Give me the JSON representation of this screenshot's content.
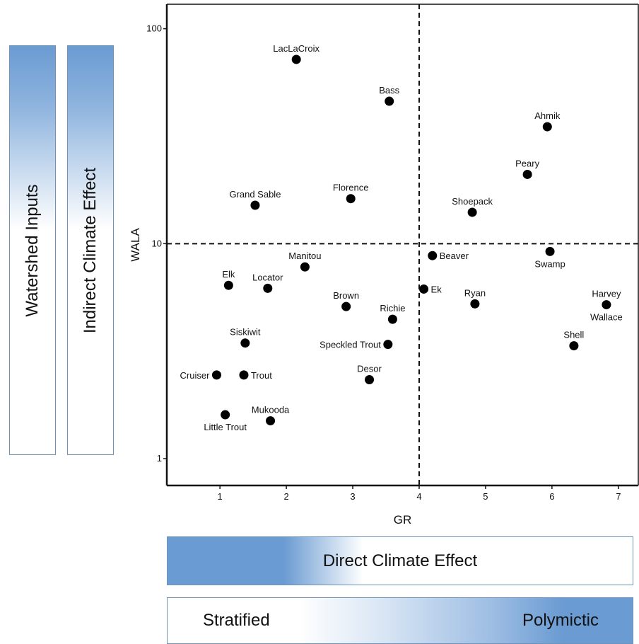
{
  "side_bars": {
    "watershed": "Watershed Inputs",
    "indirect": "Indirect Climate Effect"
  },
  "bottom_bars": {
    "direct": "Direct Climate Effect",
    "stratified": "Stratified",
    "polymictic": "Polymictic"
  },
  "chart_data": {
    "type": "scatter",
    "xlabel": "GR",
    "ylabel": "WALA",
    "xlim": [
      0.2,
      7.3
    ],
    "ylim": [
      0.75,
      130
    ],
    "y_scale": "log",
    "x_ticks": [
      1,
      2,
      3,
      4,
      5,
      6,
      7
    ],
    "y_ticks": [
      1,
      10,
      100
    ],
    "reference_lines": {
      "x": 4.0,
      "y": 10
    },
    "marker_color": "#000000",
    "points": [
      {
        "label": "LacLaCroix",
        "x": 2.15,
        "y": 72,
        "pos": "above"
      },
      {
        "label": "Bass",
        "x": 3.55,
        "y": 46,
        "pos": "above"
      },
      {
        "label": "Ahmik",
        "x": 5.93,
        "y": 35,
        "pos": "above"
      },
      {
        "label": "Peary",
        "x": 5.63,
        "y": 21,
        "pos": "above"
      },
      {
        "label": "Florence",
        "x": 2.97,
        "y": 16.2,
        "pos": "above"
      },
      {
        "label": "Grand Sable",
        "x": 1.53,
        "y": 15.1,
        "pos": "above"
      },
      {
        "label": "Shoepack",
        "x": 4.8,
        "y": 14,
        "pos": "above"
      },
      {
        "label": "Beaver",
        "x": 4.2,
        "y": 8.8,
        "pos": "right"
      },
      {
        "label": "Swamp",
        "x": 5.97,
        "y": 9.2,
        "pos": "below"
      },
      {
        "label": "Manitou",
        "x": 2.28,
        "y": 7.8,
        "pos": "above"
      },
      {
        "label": "Elk",
        "x": 1.13,
        "y": 6.4,
        "pos": "above"
      },
      {
        "label": "Locator",
        "x": 1.72,
        "y": 6.2,
        "pos": "above"
      },
      {
        "label": "Ek",
        "x": 4.07,
        "y": 6.15,
        "pos": "right"
      },
      {
        "label": "Brown",
        "x": 2.9,
        "y": 5.1,
        "pos": "above"
      },
      {
        "label": "Ryan",
        "x": 4.84,
        "y": 5.25,
        "pos": "above"
      },
      {
        "label": "Harvey",
        "x": 6.82,
        "y": 5.2,
        "pos": "above"
      },
      {
        "label": "Wallace",
        "x": 6.82,
        "y": 5.2,
        "pos": "below"
      },
      {
        "label": "Richie",
        "x": 3.6,
        "y": 4.45,
        "pos": "above"
      },
      {
        "label": "Siskiwit",
        "x": 1.38,
        "y": 3.45,
        "pos": "above"
      },
      {
        "label": "Speckled Trout",
        "x": 3.53,
        "y": 3.4,
        "pos": "left"
      },
      {
        "label": "Shell",
        "x": 6.33,
        "y": 3.35,
        "pos": "above"
      },
      {
        "label": "Cruiser",
        "x": 0.95,
        "y": 2.45,
        "pos": "left"
      },
      {
        "label": "Trout",
        "x": 1.36,
        "y": 2.45,
        "pos": "right"
      },
      {
        "label": "Desor",
        "x": 3.25,
        "y": 2.33,
        "pos": "above"
      },
      {
        "label": "Little Trout",
        "x": 1.08,
        "y": 1.6,
        "pos": "below"
      },
      {
        "label": "Mukooda",
        "x": 1.76,
        "y": 1.5,
        "pos": "above"
      }
    ]
  }
}
